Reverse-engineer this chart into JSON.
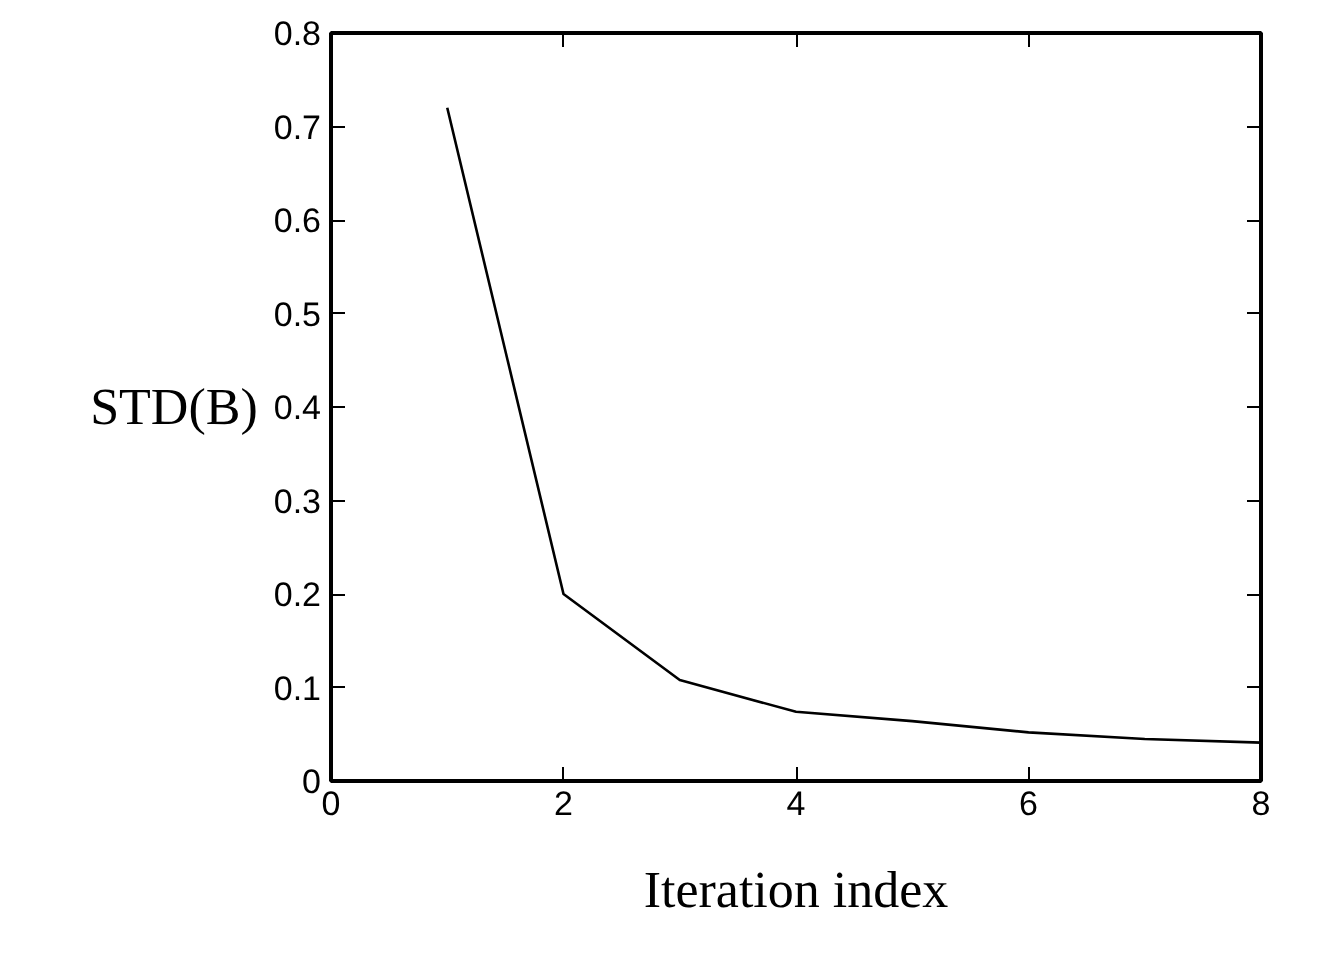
{
  "chart_data": {
    "type": "line",
    "xlabel": "Iteration index",
    "ylabel": "STD(B)",
    "x": [
      1,
      2,
      3,
      4,
      5,
      6,
      7,
      8
    ],
    "series": [
      {
        "color": "#000000",
        "values": [
          0.72,
          0.2,
          0.108,
          0.074,
          0.064,
          0.052,
          0.045,
          0.041
        ]
      }
    ],
    "xlim": [
      0,
      8
    ],
    "ylim": [
      0,
      0.8
    ],
    "xticks": [
      0,
      2,
      4,
      6,
      8
    ],
    "yticks": [
      0,
      0.1,
      0.2,
      0.3,
      0.4,
      0.5,
      0.6,
      0.7,
      0.8
    ],
    "marker": "none",
    "line_style": "solid"
  }
}
